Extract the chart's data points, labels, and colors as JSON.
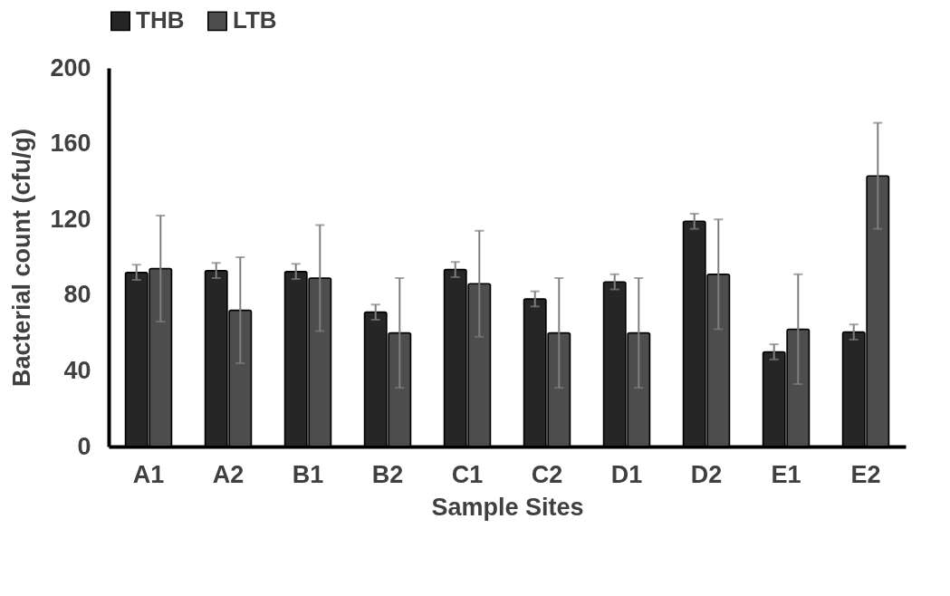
{
  "chart_data": {
    "type": "bar",
    "xlabel": "Sample Sites",
    "ylabel": "Bacterial count (cfu/g)",
    "categories": [
      "A1",
      "A2",
      "B1",
      "B2",
      "C1",
      "C2",
      "D1",
      "D2",
      "E1",
      "E2"
    ],
    "series": [
      {
        "name": "THB",
        "color": "#262626",
        "values": [
          92,
          93,
          92.5,
          71,
          93.5,
          78,
          87,
          119,
          50,
          60.5
        ],
        "errors": [
          4,
          4,
          4,
          4,
          4,
          4,
          4,
          4,
          4,
          4
        ]
      },
      {
        "name": "LTB",
        "color": "#4d4d4d",
        "values": [
          94,
          72,
          89,
          60,
          86,
          60,
          60,
          91,
          62,
          143
        ],
        "errors": [
          28,
          28,
          28,
          29,
          28,
          29,
          29,
          29,
          29,
          28
        ]
      }
    ],
    "ylim": [
      0,
      200
    ],
    "yticks": [
      0,
      40,
      80,
      120,
      160,
      200
    ],
    "grid": false,
    "legend": "top"
  }
}
